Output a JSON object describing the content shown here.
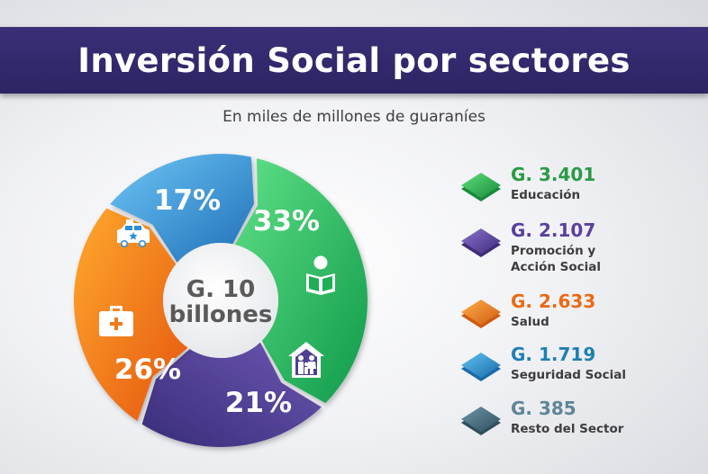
{
  "header": {
    "title": "Inversión Social por sectores"
  },
  "subtitle": "En miles de millones de guaraníes",
  "chart_data": {
    "type": "pie",
    "subtype": "donut",
    "center_label": [
      "G. 10",
      "billones"
    ],
    "slices": [
      {
        "name": "Seguridad Social",
        "percent": 17,
        "label": "17%",
        "color": "#2a8fd4",
        "icon": "police-car-icon"
      },
      {
        "name": "Educación",
        "percent": 33,
        "label": "33%",
        "color": "#1fae55",
        "icon": "reading-student-icon"
      },
      {
        "name": "Promoción y Acción Social",
        "percent": 21,
        "label": "21%",
        "color": "#4e3f92",
        "icon": "family-house-icon"
      },
      {
        "name": "Salud",
        "percent": 26,
        "label": "26%",
        "color": "#f07a1a",
        "icon": "medical-kit-icon"
      }
    ]
  },
  "legend": [
    {
      "value": "G. 3.401",
      "label": "Educación",
      "color": "#2a9a45",
      "color_light": "#5fe07a",
      "color_dark": "#1a8a3a"
    },
    {
      "value": "G. 2.107",
      "label": "Promoción y Acción Social",
      "label_lines": [
        "Promoción y",
        "Acción Social"
      ],
      "color": "#5b3f9e",
      "color_light": "#8c72cf",
      "color_dark": "#3d2d7a"
    },
    {
      "value": "G. 2.633",
      "label": "Salud",
      "color": "#ea6a14",
      "color_light": "#ffb04a",
      "color_dark": "#d05a10"
    },
    {
      "value": "G. 1.719",
      "label": "Seguridad Social",
      "color": "#1e7fb3",
      "color_light": "#5fc4f2",
      "color_dark": "#1a6aa8"
    },
    {
      "value": "G. 385",
      "label": "Resto del Sector",
      "color": "#5f8596",
      "color_light": "#6f95a6",
      "color_dark": "#2f4f5f"
    }
  ]
}
